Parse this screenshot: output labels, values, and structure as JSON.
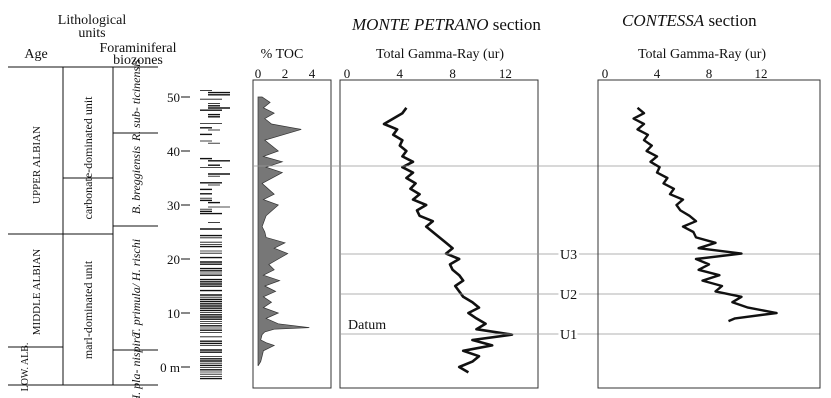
{
  "headers": {
    "age": "Age",
    "lith_line1": "Lithological",
    "lith_line2": "units",
    "foram_line1": "Foraminiferal",
    "foram_line2": "biozones",
    "toc": "% TOC",
    "mp_title_italic": "MONTE PETRANO",
    "mp_title_rest": " section",
    "co_title_italic": "CONTESSA",
    "co_title_rest": " section",
    "gamma_label": "Total Gamma-Ray (ur)"
  },
  "depth_ticks": [
    "50",
    "40",
    "30",
    "20",
    "10",
    "0 m"
  ],
  "ages": [
    {
      "label": "UPPER ALBIAN"
    },
    {
      "label": "MIDDLE ALBIAN"
    },
    {
      "label": "LOW. ALB."
    }
  ],
  "lith_units": [
    {
      "label": "carbonate-dominated unit"
    },
    {
      "label": "marl-dominated unit"
    }
  ],
  "biozones": [
    {
      "label": "R. sub- ticinensis"
    },
    {
      "label": "B. breggiensis"
    },
    {
      "label": "T. primula/ H. rischi"
    },
    {
      "label": "H. pla- nispira"
    }
  ],
  "markers": {
    "datum": "Datum",
    "u1": "U1",
    "u2": "U2",
    "u3": "U3"
  },
  "chart_data": [
    {
      "type": "area",
      "name": "toc",
      "title": "% TOC",
      "xlim": [
        0,
        5
      ],
      "ylim": [
        0,
        52
      ],
      "xticks": [
        "0",
        "2",
        "4"
      ],
      "y": [
        0.2,
        1,
        2,
        3,
        4,
        4.5,
        5,
        6,
        6.5,
        7,
        7.3,
        8,
        9,
        10,
        11,
        12,
        13,
        14,
        15,
        16,
        17,
        18,
        19,
        20,
        21,
        22,
        23,
        24,
        25,
        26,
        28,
        30,
        31,
        32,
        34,
        36,
        37,
        38,
        39,
        40,
        42,
        44,
        45,
        46,
        47,
        48,
        49,
        50
      ],
      "values": [
        0,
        0.2,
        0.3,
        0.4,
        1.2,
        0.6,
        0.2,
        0.3,
        0.5,
        1.2,
        3.8,
        1.5,
        0.6,
        1.5,
        0.4,
        1,
        0.4,
        1.3,
        0.5,
        1.6,
        0.4,
        1.2,
        0.8,
        1.5,
        2.2,
        1.2,
        2,
        0.6,
        0.5,
        0.3,
        0.6,
        1.5,
        0.4,
        1.2,
        0.3,
        1.8,
        0.6,
        1.8,
        0.4,
        1.5,
        0.5,
        3.2,
        1,
        0.5,
        1.2,
        0.4,
        0.9,
        0.3
      ]
    },
    {
      "type": "line",
      "name": "monte_petrano_gamma",
      "xlabel": "Total Gamma-Ray (ur)",
      "xlim": [
        0,
        15
      ],
      "ylim": [
        0,
        52
      ],
      "xticks": [
        "0",
        "4",
        "8",
        "12"
      ],
      "y": [
        -1,
        0,
        1,
        2,
        3,
        4,
        5,
        6,
        7,
        8,
        9,
        10,
        11,
        12,
        13,
        14,
        15,
        16,
        17,
        18,
        19,
        20,
        21,
        22,
        23,
        24,
        25,
        26,
        27,
        28,
        29,
        30,
        31,
        32,
        33,
        34,
        35,
        36,
        37,
        38,
        39,
        40,
        41,
        42,
        43,
        44,
        45,
        46,
        47,
        48
      ],
      "values": [
        9.2,
        8.5,
        9.5,
        10,
        8.8,
        11,
        9.5,
        12.5,
        9.8,
        10.5,
        9.8,
        9.2,
        10,
        9.5,
        8.8,
        8.5,
        8.2,
        8.8,
        8.5,
        8,
        7.8,
        8.5,
        7.5,
        8,
        7.5,
        7,
        6.5,
        6,
        6.5,
        5.5,
        5.3,
        6,
        5,
        5.5,
        4.8,
        5.2,
        4.5,
        5,
        4.2,
        5,
        4.2,
        4.5,
        4,
        4.2,
        3.5,
        3.8,
        2.8,
        3.5,
        4.2,
        4.5
      ]
    },
    {
      "type": "line",
      "name": "contessa_gamma",
      "xlabel": "Total Gamma-Ray (ur)",
      "xlim": [
        0,
        15
      ],
      "ylim": [
        0,
        52
      ],
      "xticks": [
        "0",
        "4",
        "8",
        "12"
      ],
      "y": [
        8.5,
        9,
        10,
        11,
        12,
        13,
        14,
        15,
        16,
        17,
        18,
        19,
        20,
        21,
        22,
        23,
        24,
        25,
        26,
        27,
        28,
        29,
        30,
        31,
        32,
        33,
        34,
        35,
        36,
        37,
        38,
        39,
        40,
        41,
        42,
        43,
        44,
        45,
        46,
        47,
        48
      ],
      "values": [
        9.5,
        10,
        13.2,
        11,
        9.8,
        10.5,
        8.5,
        9,
        7.5,
        8.8,
        7.2,
        8,
        7,
        10.5,
        7.2,
        8.5,
        7,
        6.8,
        6,
        7,
        6.5,
        5.8,
        5.5,
        6,
        5,
        5.3,
        4.5,
        4.8,
        4,
        4.2,
        3.5,
        4,
        3.2,
        3.6,
        3,
        3.3,
        2.5,
        3,
        2.2,
        3,
        2.5
      ]
    }
  ]
}
